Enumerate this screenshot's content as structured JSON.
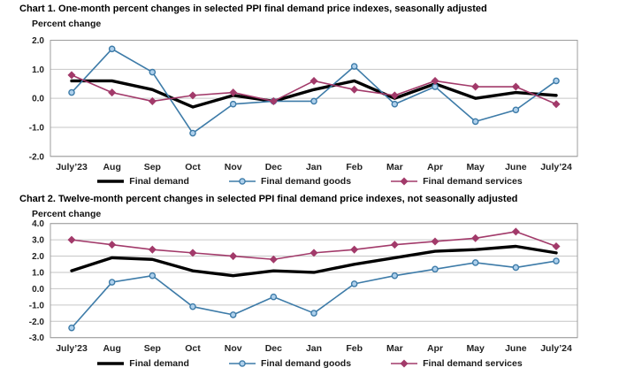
{
  "page_background": "#ffffff",
  "axis": {
    "tick_color": "#222222",
    "grid_color": "#c6c6c6",
    "border_color": "#9c9c9c"
  },
  "chart_data": [
    {
      "type": "line",
      "title": "Chart 1. One-month percent changes in selected PPI final demand price indexes, seasonally adjusted",
      "ylabel": "Percent change",
      "xlabel": "",
      "grid": true,
      "legend_position": "bottom",
      "ylim": [
        -2.0,
        2.0
      ],
      "yticks": [
        2.0,
        1.0,
        0.0,
        -1.0,
        -2.0
      ],
      "categories": [
        "July’23",
        "Aug",
        "Sep",
        "Oct",
        "Nov",
        "Dec",
        "Jan",
        "Feb",
        "Mar",
        "Apr",
        "May",
        "June",
        "July’24"
      ],
      "series": [
        {
          "name": "Final demand",
          "color": "#000000",
          "line_width": 3.4,
          "marker": "none",
          "values": [
            0.6,
            0.6,
            0.3,
            -0.3,
            0.1,
            -0.1,
            0.3,
            0.6,
            0.0,
            0.5,
            0.0,
            0.2,
            0.1
          ]
        },
        {
          "name": "Final demand goods",
          "color": "#3d7ba8",
          "line_width": 1.6,
          "marker": "circle",
          "marker_fill": "#aed0ec",
          "values": [
            0.2,
            1.7,
            0.9,
            -1.2,
            -0.2,
            -0.1,
            -0.1,
            1.1,
            -0.2,
            0.4,
            -0.8,
            -0.4,
            0.6
          ]
        },
        {
          "name": "Final demand services",
          "color": "#a23a6a",
          "line_width": 1.6,
          "marker": "diamond",
          "marker_fill": "#a23a6a",
          "values": [
            0.8,
            0.2,
            -0.1,
            0.1,
            0.2,
            -0.1,
            0.6,
            0.3,
            0.1,
            0.6,
            0.4,
            0.4,
            -0.2
          ]
        }
      ]
    },
    {
      "type": "line",
      "title": "Chart 2. Twelve-month percent changes in selected PPI final demand price indexes, not seasonally adjusted",
      "ylabel": "Percent change",
      "xlabel": "",
      "grid": true,
      "legend_position": "bottom",
      "ylim": [
        -3.0,
        4.0
      ],
      "yticks": [
        4.0,
        3.0,
        2.0,
        1.0,
        0.0,
        -1.0,
        -2.0,
        -3.0
      ],
      "categories": [
        "July’23",
        "Aug",
        "Sep",
        "Oct",
        "Nov",
        "Dec",
        "Jan",
        "Feb",
        "Mar",
        "Apr",
        "May",
        "June",
        "July’24"
      ],
      "series": [
        {
          "name": "Final demand",
          "color": "#000000",
          "line_width": 3.4,
          "marker": "none",
          "values": [
            1.1,
            1.9,
            1.8,
            1.1,
            0.8,
            1.1,
            1.0,
            1.5,
            1.9,
            2.3,
            2.4,
            2.6,
            2.2
          ]
        },
        {
          "name": "Final demand goods",
          "color": "#3d7ba8",
          "line_width": 1.6,
          "marker": "circle",
          "marker_fill": "#aed0ec",
          "values": [
            -2.4,
            0.4,
            0.8,
            -1.1,
            -1.6,
            -0.5,
            -1.5,
            0.3,
            0.8,
            1.2,
            1.6,
            1.3,
            1.7
          ]
        },
        {
          "name": "Final demand services",
          "color": "#a23a6a",
          "line_width": 1.6,
          "marker": "diamond",
          "marker_fill": "#a23a6a",
          "values": [
            3.0,
            2.7,
            2.4,
            2.2,
            2.0,
            1.8,
            2.2,
            2.4,
            2.7,
            2.9,
            3.1,
            3.5,
            2.6
          ]
        }
      ]
    }
  ]
}
